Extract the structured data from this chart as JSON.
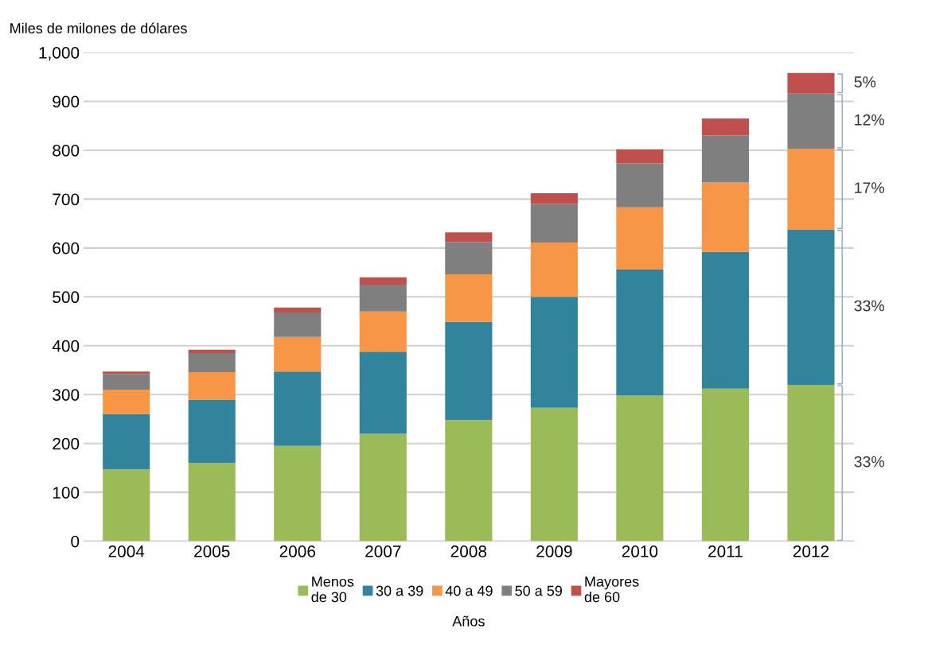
{
  "chart_data": {
    "type": "bar",
    "stacked": true,
    "ylabel": "Miles de milones de dólares",
    "xlabel": "Años",
    "categories": [
      "2004",
      "2005",
      "2006",
      "2007",
      "2008",
      "2009",
      "2010",
      "2011",
      "2012"
    ],
    "series": [
      {
        "name": "Menos\nde 30",
        "color": "#9bbb59",
        "values": [
          147,
          160,
          195,
          220,
          248,
          273,
          298,
          312,
          320
        ]
      },
      {
        "name": "30 a 39",
        "color": "#31849b",
        "values": [
          113,
          130,
          152,
          168,
          201,
          227,
          258,
          280,
          318
        ]
      },
      {
        "name": "40 a 49",
        "color": "#f79646",
        "values": [
          50,
          56,
          71,
          82,
          97,
          111,
          127,
          142,
          165
        ]
      },
      {
        "name": "50 a 59",
        "color": "#7f7f7f",
        "values": [
          32,
          39,
          50,
          55,
          66,
          79,
          90,
          96,
          113
        ]
      },
      {
        "name": "Mayores\nde 60",
        "color": "#c0504d",
        "values": [
          5,
          7,
          10,
          15,
          20,
          22,
          29,
          35,
          42
        ]
      }
    ],
    "ylim": [
      0,
      1000
    ],
    "yticks": [
      0,
      100,
      200,
      300,
      400,
      500,
      600,
      700,
      800,
      900,
      {
        "value": 1000,
        "label": "1,000"
      }
    ],
    "grid": "y",
    "legend": "bottom",
    "annotations": [
      "33%",
      "33%",
      "17%",
      "12%",
      "5%"
    ]
  }
}
